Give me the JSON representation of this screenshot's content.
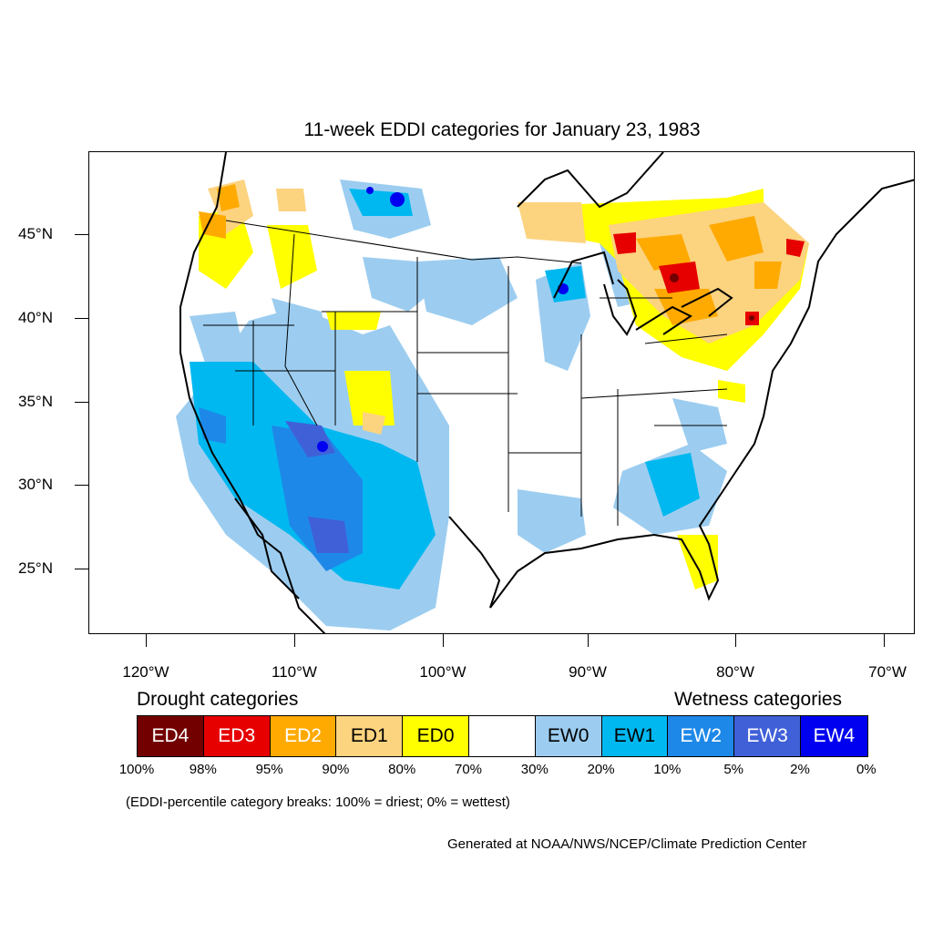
{
  "title": "11-week EDDI categories for January 23, 1983",
  "map": {
    "lat_labels": [
      "45°N",
      "40°N",
      "35°N",
      "30°N",
      "25°N"
    ],
    "lon_labels": [
      "120°W",
      "110°W",
      "100°W",
      "90°W",
      "80°W",
      "70°W"
    ]
  },
  "legend": {
    "drought_heading": "Drought categories",
    "wetness_heading": "Wetness categories",
    "categories": [
      {
        "label": "ED4",
        "color": "#730000",
        "text_color": "#ffffff"
      },
      {
        "label": "ED3",
        "color": "#e60000",
        "text_color": "#ffffff"
      },
      {
        "label": "ED2",
        "color": "#ffaa00",
        "text_color": "#ffffff"
      },
      {
        "label": "ED1",
        "color": "#fcd37f",
        "text_color": "#000000"
      },
      {
        "label": "ED0",
        "color": "#ffff00",
        "text_color": "#000000"
      },
      {
        "label": "",
        "color": "#ffffff",
        "text_color": "#000000"
      },
      {
        "label": "EW0",
        "color": "#9ccdf0",
        "text_color": "#000000"
      },
      {
        "label": "EW1",
        "color": "#00b8f0",
        "text_color": "#000000"
      },
      {
        "label": "EW2",
        "color": "#1e88e8",
        "text_color": "#ffffff"
      },
      {
        "label": "EW3",
        "color": "#4060d8",
        "text_color": "#ffffff"
      },
      {
        "label": "EW4",
        "color": "#0000f0",
        "text_color": "#ffffff"
      }
    ],
    "percentiles": [
      "100%",
      "98%",
      "95%",
      "90%",
      "80%",
      "70%",
      "30%",
      "20%",
      "10%",
      "5%",
      "2%",
      "0%"
    ]
  },
  "note": "(EDDI-percentile category breaks: 100% = driest; 0% = wettest)",
  "credit": "Generated at NOAA/NWS/NCEP/Climate Prediction Center"
}
